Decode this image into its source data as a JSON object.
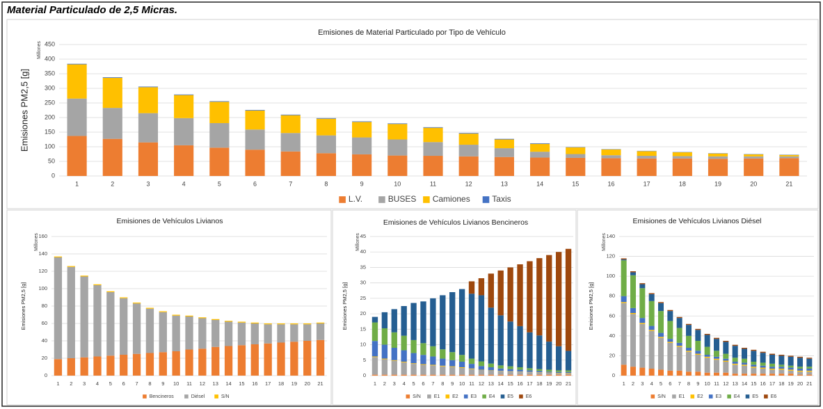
{
  "title": "Material Particulado de 2,5 Micras.",
  "chart_data": [
    {
      "type": "bar",
      "stacked": true,
      "grid": true,
      "legend": "bottom",
      "title": "Emisiones de Material Particulado por Tipo de Vehículo",
      "y_label": "Emisiones PM2,5 [g]",
      "y_unit": "Millones",
      "categories": [
        1,
        2,
        3,
        4,
        5,
        6,
        7,
        8,
        9,
        10,
        11,
        12,
        13,
        14,
        15,
        16,
        17,
        18,
        19,
        20,
        21
      ],
      "ylim": [
        0,
        450
      ],
      "yticks": [
        0,
        50,
        100,
        150,
        200,
        250,
        300,
        350,
        400,
        450
      ],
      "series": [
        {
          "name": "L.V.",
          "color": "#ED7D31",
          "values": [
            137,
            127,
            115,
            105,
            97,
            90,
            84,
            78,
            74,
            70,
            69,
            67,
            65,
            63,
            62,
            61,
            60,
            60,
            59,
            60,
            61
          ]
        },
        {
          "name": "BUSES",
          "color": "#A5A5A5",
          "values": [
            128,
            106,
            100,
            93,
            84,
            69,
            63,
            61,
            58,
            55,
            47,
            40,
            30,
            20,
            13,
            10,
            9,
            8,
            8,
            7,
            6
          ]
        },
        {
          "name": "Camiones",
          "color": "#FFC000",
          "values": [
            117,
            103,
            89,
            79,
            73,
            65,
            61,
            57,
            53,
            53,
            49,
            38,
            30,
            27,
            23,
            20,
            16,
            13,
            10,
            7,
            5
          ]
        },
        {
          "name": "Taxis",
          "color": "#4472C4",
          "values": [
            2,
            2,
            2,
            2,
            2,
            2,
            2,
            2,
            2,
            2,
            2,
            2,
            2,
            2,
            1,
            1,
            1,
            1,
            1,
            1,
            1
          ]
        }
      ]
    },
    {
      "type": "bar",
      "stacked": true,
      "grid": true,
      "legend": "bottom",
      "title": "Emisiones de Vehículos Livianos",
      "y_label": "Emisiones PM2,5 [g]",
      "y_unit": "Millones",
      "categories": [
        1,
        2,
        3,
        4,
        5,
        6,
        7,
        8,
        9,
        10,
        11,
        12,
        13,
        14,
        15,
        16,
        17,
        18,
        19,
        20,
        21
      ],
      "ylim": [
        0,
        160
      ],
      "yticks": [
        0,
        20,
        40,
        60,
        80,
        100,
        120,
        140,
        160
      ],
      "series": [
        {
          "name": "Bencineros",
          "color": "#ED7D31",
          "values": [
            19,
            20,
            21,
            22,
            23,
            24,
            25,
            26,
            27,
            28,
            30,
            31,
            33,
            34,
            35,
            36,
            37,
            38,
            39,
            40,
            41
          ]
        },
        {
          "name": "Diésel",
          "color": "#A5A5A5",
          "values": [
            117,
            105,
            93,
            82,
            73,
            65,
            58,
            51,
            46,
            41,
            38,
            35,
            31,
            28,
            26,
            24,
            22,
            21,
            20,
            19,
            19
          ]
        },
        {
          "name": "S/N",
          "color": "#FFC000",
          "values": [
            1,
            1,
            1,
            1,
            1,
            1,
            1,
            1,
            1,
            1,
            1,
            1,
            1,
            1,
            1,
            1,
            1,
            1,
            1,
            1,
            1
          ]
        }
      ]
    },
    {
      "type": "bar",
      "stacked": true,
      "grid": true,
      "legend": "bottom",
      "title": "Emisiones de Vehículos Livianos Bencineros",
      "y_label": "Emisiones PM2,5 [g]",
      "y_unit": "Millones",
      "categories": [
        1,
        2,
        3,
        4,
        5,
        6,
        7,
        8,
        9,
        10,
        11,
        12,
        13,
        14,
        15,
        16,
        17,
        18,
        19,
        20,
        21
      ],
      "ylim": [
        0,
        45
      ],
      "yticks": [
        0,
        5,
        10,
        15,
        20,
        25,
        30,
        35,
        40,
        45
      ],
      "series": [
        {
          "name": "S/N",
          "color": "#ED7D31",
          "values": [
            0.3,
            0.3,
            0.3,
            0.3,
            0.3,
            0.3,
            0.3,
            0.3,
            0.3,
            0.3,
            0.3,
            0.3,
            0.3,
            0.3,
            0.3,
            0.3,
            0.3,
            0.3,
            0.3,
            0.3,
            0.3
          ]
        },
        {
          "name": "E1",
          "color": "#A5A5A5",
          "values": [
            5.7,
            5,
            4.5,
            4,
            3.5,
            3.2,
            3,
            2.7,
            2.5,
            2.2,
            1.8,
            1.5,
            1.3,
            1.1,
            1,
            0.9,
            0.8,
            0.7,
            0.6,
            0.5,
            0.5
          ]
        },
        {
          "name": "E2",
          "color": "#FFC000",
          "values": [
            0.2,
            0.2,
            0.2,
            0.2,
            0.2,
            0.2,
            0.2,
            0.2,
            0.2,
            0.2,
            0.2,
            0.1,
            0.1,
            0.1,
            0.1,
            0.1,
            0.1,
            0.1,
            0.1,
            0.1,
            0.1
          ]
        },
        {
          "name": "E3",
          "color": "#4472C4",
          "values": [
            5,
            4.5,
            4,
            3.7,
            3.3,
            3,
            2.7,
            2.3,
            2,
            1.8,
            1.5,
            1.2,
            1,
            0.8,
            0.7,
            0.6,
            0.5,
            0.4,
            0.3,
            0.3,
            0.3
          ]
        },
        {
          "name": "E4",
          "color": "#70AD47",
          "values": [
            6,
            5.3,
            5,
            4.7,
            4.2,
            3.8,
            3.3,
            3,
            2.6,
            2.2,
            1.7,
            1.5,
            1.2,
            1,
            0.9,
            0.8,
            0.7,
            0.6,
            0.6,
            0.5,
            0.5
          ]
        },
        {
          "name": "E5",
          "color": "#255E91",
          "values": [
            1.8,
            5.2,
            7.5,
            9.6,
            12,
            13.5,
            15.5,
            17.5,
            19.4,
            21.3,
            21,
            21.4,
            18.1,
            16.2,
            14.5,
            13.3,
            11.6,
            10.9,
            9.1,
            7.8,
            6.3
          ]
        },
        {
          "name": "E6",
          "color": "#9E480E",
          "values": [
            0,
            0,
            0,
            0,
            0,
            0,
            0,
            0,
            0,
            0,
            4,
            5.5,
            11,
            14.5,
            17.5,
            20,
            23,
            25,
            28,
            30.5,
            33
          ]
        }
      ]
    },
    {
      "type": "bar",
      "stacked": true,
      "grid": true,
      "legend": "bottom",
      "title": "Emisiones de Vehículos Livianos Diésel",
      "y_label": "Emisiones PM2,5 [g]",
      "y_unit": "Millones",
      "categories": [
        1,
        2,
        3,
        4,
        5,
        6,
        7,
        8,
        9,
        10,
        11,
        12,
        13,
        14,
        15,
        16,
        17,
        18,
        19,
        20,
        21
      ],
      "ylim": [
        0,
        140
      ],
      "yticks": [
        0,
        20,
        40,
        60,
        80,
        100,
        120,
        140
      ],
      "series": [
        {
          "name": "S/N",
          "color": "#ED7D31",
          "values": [
            11,
            9,
            8,
            7,
            6,
            5,
            5,
            4,
            4,
            3,
            3,
            3,
            2,
            2,
            2,
            2,
            2,
            2,
            2,
            1,
            1
          ]
        },
        {
          "name": "E1",
          "color": "#A5A5A5",
          "values": [
            62,
            53,
            44,
            38,
            32,
            28,
            24,
            20,
            17,
            15,
            13,
            11,
            9,
            8,
            6,
            5,
            4,
            4,
            3,
            3,
            3
          ]
        },
        {
          "name": "E2",
          "color": "#FFC000",
          "values": [
            1,
            1,
            1,
            1,
            1,
            1,
            1,
            1,
            1,
            1,
            1,
            1,
            1,
            1,
            1,
            1,
            1,
            1,
            1,
            1,
            1
          ]
        },
        {
          "name": "E3",
          "color": "#4472C4",
          "values": [
            6,
            5,
            5,
            4,
            4,
            3,
            3,
            3,
            3,
            2,
            2,
            2,
            2,
            2,
            2,
            2,
            2,
            2,
            2,
            2,
            2
          ]
        },
        {
          "name": "E4",
          "color": "#70AD47",
          "values": [
            36,
            33,
            30,
            25,
            22,
            18,
            15,
            12,
            10,
            8,
            6,
            5,
            4,
            4,
            3,
            3,
            3,
            2,
            2,
            2,
            2
          ]
        },
        {
          "name": "E5",
          "color": "#255E91",
          "values": [
            1,
            3,
            4,
            7,
            8,
            10,
            10,
            11,
            11,
            12,
            12,
            12,
            12,
            10,
            11,
            10,
            9,
            9,
            9,
            9,
            8
          ]
        },
        {
          "name": "E6",
          "color": "#9E480E",
          "values": [
            1,
            1,
            1,
            1,
            1,
            1,
            1,
            1,
            1,
            1,
            1,
            1,
            1,
            1,
            1,
            1,
            1,
            1,
            1,
            1,
            1
          ]
        }
      ]
    }
  ]
}
